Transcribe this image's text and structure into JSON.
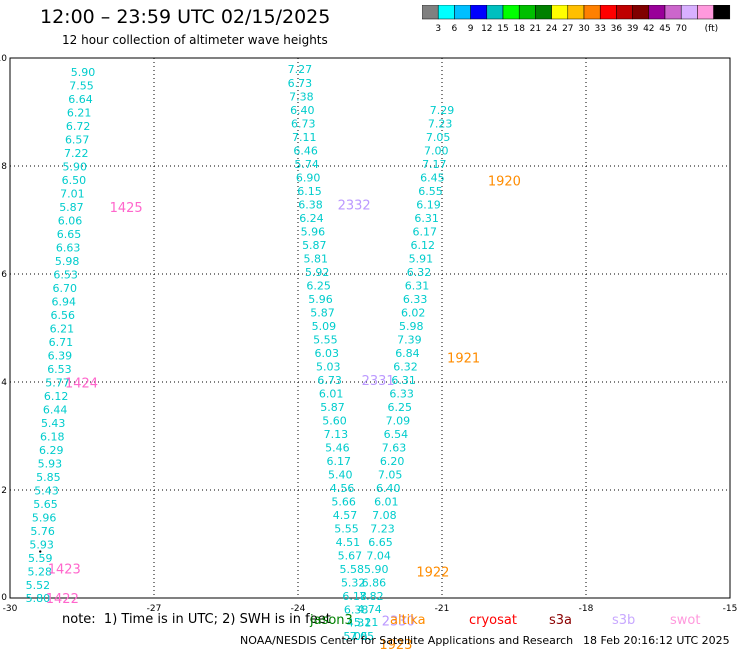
{
  "header": {
    "title": "12:00 – 23:59 UTC 02/15/2025",
    "subtitle": "12 hour collection of altimeter wave heights"
  },
  "colorbar": {
    "colors": [
      "#808080",
      "#00ffff",
      "#00bfff",
      "#0000ff",
      "#00bfbf",
      "#00ff00",
      "#00bf00",
      "#008000",
      "#ffff00",
      "#ffbf00",
      "#ff8000",
      "#ff0000",
      "#bf0000",
      "#800000",
      "#990099",
      "#cc66cc",
      "#d8b0ff",
      "#ff99dd",
      "#000000"
    ],
    "labels": [
      "3",
      "6",
      "9",
      "12",
      "15",
      "18",
      "21",
      "24",
      "27",
      "30",
      "33",
      "36",
      "39",
      "42",
      "45",
      "70",
      "(ft)"
    ]
  },
  "footer": {
    "note": "note:  1) Time is in UTC; 2) SWH is in feet",
    "credit": "NOAA/NESDIS Center for Satellite Applications and Research",
    "timestamp": "18 Feb 20:16:12 UTC 2025",
    "missions": [
      {
        "name": "jason3",
        "color": "#008000"
      },
      {
        "name": "altika",
        "color": "#ff8c00"
      },
      {
        "name": "cryosat",
        "color": "#ff0000"
      },
      {
        "name": "s3a",
        "color": "#8b0000"
      },
      {
        "name": "s3b",
        "color": "#c8a8ff"
      },
      {
        "name": "swot",
        "color": "#ff99dd"
      }
    ]
  },
  "chart_data": {
    "type": "scatter",
    "xlim": [
      -30,
      -15
    ],
    "ylim": [
      0,
      10
    ],
    "xticks": [
      "-30",
      "-27",
      "-24",
      "-21",
      "-18",
      "-15"
    ],
    "yticks": [
      "0",
      "2",
      "4",
      "6",
      "8",
      "10"
    ],
    "grid": true,
    "tracks": [
      {
        "name": "swot-track-1",
        "color": "#00cccc",
        "points": [
          {
            "x": -29.42,
            "y": 0.0,
            "swh": "5.80"
          },
          {
            "x": -29.42,
            "y": 0.24,
            "swh": "5.52"
          },
          {
            "x": -29.38,
            "y": 0.49,
            "swh": "5.28"
          },
          {
            "x": -29.37,
            "y": 0.74,
            "swh": "5.59"
          },
          {
            "x": -29.34,
            "y": 0.99,
            "swh": "5.93"
          },
          {
            "x": -29.32,
            "y": 1.24,
            "swh": "5.76"
          },
          {
            "x": -29.29,
            "y": 1.49,
            "swh": "5.96"
          },
          {
            "x": -29.26,
            "y": 1.74,
            "swh": "5.65"
          },
          {
            "x": -29.24,
            "y": 1.99,
            "swh": "5.43"
          },
          {
            "x": -29.2,
            "y": 2.24,
            "swh": "5.85"
          },
          {
            "x": -29.17,
            "y": 2.49,
            "swh": "5.93"
          },
          {
            "x": -29.14,
            "y": 2.74,
            "swh": "6.29"
          },
          {
            "x": -29.12,
            "y": 2.99,
            "swh": "6.18"
          },
          {
            "x": -29.1,
            "y": 3.24,
            "swh": "5.43"
          },
          {
            "x": -29.06,
            "y": 3.49,
            "swh": "6.44"
          },
          {
            "x": -29.04,
            "y": 3.74,
            "swh": "6.12"
          },
          {
            "x": -29.01,
            "y": 3.99,
            "swh": "5.77"
          },
          {
            "x": -28.97,
            "y": 4.24,
            "swh": "6.53"
          },
          {
            "x": -28.96,
            "y": 4.49,
            "swh": "6.39"
          },
          {
            "x": -28.94,
            "y": 4.74,
            "swh": "6.71"
          },
          {
            "x": -28.92,
            "y": 4.99,
            "swh": "6.21"
          },
          {
            "x": -28.9,
            "y": 5.24,
            "swh": "6.56"
          },
          {
            "x": -28.88,
            "y": 5.49,
            "swh": "6.94"
          },
          {
            "x": -28.86,
            "y": 5.74,
            "swh": "6.70"
          },
          {
            "x": -28.84,
            "y": 5.99,
            "swh": "6.53"
          },
          {
            "x": -28.81,
            "y": 6.24,
            "swh": "5.98"
          },
          {
            "x": -28.79,
            "y": 6.49,
            "swh": "6.63"
          },
          {
            "x": -28.77,
            "y": 6.74,
            "swh": "6.65"
          },
          {
            "x": -28.75,
            "y": 6.99,
            "swh": "6.06"
          },
          {
            "x": -28.72,
            "y": 7.24,
            "swh": "5.87"
          },
          {
            "x": -28.7,
            "y": 7.49,
            "swh": "7.01"
          },
          {
            "x": -28.67,
            "y": 7.74,
            "swh": "6.50"
          },
          {
            "x": -28.65,
            "y": 7.99,
            "swh": "5.90"
          },
          {
            "x": -28.62,
            "y": 8.24,
            "swh": "7.22"
          },
          {
            "x": -28.6,
            "y": 8.49,
            "swh": "6.57"
          },
          {
            "x": -28.58,
            "y": 8.74,
            "swh": "6.72"
          },
          {
            "x": -28.56,
            "y": 8.99,
            "swh": "6.21"
          },
          {
            "x": -28.53,
            "y": 9.24,
            "swh": "6.64"
          },
          {
            "x": -28.51,
            "y": 9.49,
            "swh": "7.55"
          },
          {
            "x": -28.48,
            "y": 9.74,
            "swh": "5.90"
          }
        ]
      },
      {
        "name": "swot-track-2",
        "color": "#00cccc",
        "points": [
          {
            "x": -23.96,
            "y": 9.8,
            "swh": "7.27"
          },
          {
            "x": -23.96,
            "y": 9.54,
            "swh": "6.73"
          },
          {
            "x": -23.93,
            "y": 9.29,
            "swh": "7.38"
          },
          {
            "x": -23.91,
            "y": 9.04,
            "swh": "6.40"
          },
          {
            "x": -23.89,
            "y": 8.79,
            "swh": "6.73"
          },
          {
            "x": -23.87,
            "y": 8.54,
            "swh": "7.11"
          },
          {
            "x": -23.84,
            "y": 8.29,
            "swh": "6.46"
          },
          {
            "x": -23.82,
            "y": 8.04,
            "swh": "5.74"
          },
          {
            "x": -23.79,
            "y": 7.79,
            "swh": "6.90"
          },
          {
            "x": -23.76,
            "y": 7.54,
            "swh": "6.15"
          },
          {
            "x": -23.74,
            "y": 7.29,
            "swh": "6.38"
          },
          {
            "x": -23.72,
            "y": 7.04,
            "swh": "6.24"
          },
          {
            "x": -23.69,
            "y": 6.79,
            "swh": "5.96"
          },
          {
            "x": -23.66,
            "y": 6.54,
            "swh": "5.87"
          },
          {
            "x": -23.63,
            "y": 6.29,
            "swh": "5.81"
          },
          {
            "x": -23.6,
            "y": 6.04,
            "swh": "5.92"
          },
          {
            "x": -23.57,
            "y": 5.79,
            "swh": "6.25"
          },
          {
            "x": -23.53,
            "y": 5.54,
            "swh": "5.96"
          },
          {
            "x": -23.49,
            "y": 5.29,
            "swh": "5.87"
          },
          {
            "x": -23.46,
            "y": 5.04,
            "swh": "5.09"
          },
          {
            "x": -23.43,
            "y": 4.79,
            "swh": "5.55"
          },
          {
            "x": -23.4,
            "y": 4.54,
            "swh": "6.03"
          },
          {
            "x": -23.37,
            "y": 4.29,
            "swh": "5.03"
          },
          {
            "x": -23.34,
            "y": 4.04,
            "swh": "6.73"
          },
          {
            "x": -23.31,
            "y": 3.79,
            "swh": "6.01"
          },
          {
            "x": -23.28,
            "y": 3.54,
            "swh": "5.87"
          },
          {
            "x": -23.24,
            "y": 3.29,
            "swh": "5.60"
          },
          {
            "x": -23.21,
            "y": 3.04,
            "swh": "7.13"
          },
          {
            "x": -23.18,
            "y": 2.79,
            "swh": "5.46"
          },
          {
            "x": -23.15,
            "y": 2.54,
            "swh": "6.17"
          },
          {
            "x": -23.12,
            "y": 2.29,
            "swh": "5.40"
          },
          {
            "x": -23.08,
            "y": 2.04,
            "swh": "4.56"
          },
          {
            "x": -23.05,
            "y": 1.79,
            "swh": "5.66"
          },
          {
            "x": -23.02,
            "y": 1.54,
            "swh": "4.57"
          },
          {
            "x": -22.99,
            "y": 1.29,
            "swh": "5.55"
          },
          {
            "x": -22.96,
            "y": 1.04,
            "swh": "4.51"
          },
          {
            "x": -22.92,
            "y": 0.79,
            "swh": "5.67"
          },
          {
            "x": -22.88,
            "y": 0.54,
            "swh": "5.58"
          },
          {
            "x": -22.85,
            "y": 0.29,
            "swh": "5.32"
          },
          {
            "x": -22.82,
            "y": 0.04,
            "swh": "6.18"
          },
          {
            "x": -22.79,
            "y": -0.21,
            "swh": "6.38"
          },
          {
            "x": -22.73,
            "y": -0.45,
            "swh": "4.31"
          },
          {
            "x": -22.8,
            "y": -0.7,
            "swh": "5.05"
          }
        ]
      },
      {
        "name": "swot-track-3",
        "color": "#00cccc",
        "points": [
          {
            "x": -22.51,
            "y": -0.2,
            "swh": "4.74"
          },
          {
            "x": -22.58,
            "y": -0.44,
            "swh": "5.21"
          },
          {
            "x": -22.67,
            "y": -0.7,
            "swh": "7.05"
          },
          {
            "x": -22.47,
            "y": 0.04,
            "swh": "7.82"
          },
          {
            "x": -22.42,
            "y": 0.29,
            "swh": "6.86"
          },
          {
            "x": -22.37,
            "y": 0.54,
            "swh": "5.90"
          },
          {
            "x": -22.32,
            "y": 0.79,
            "swh": "7.04"
          },
          {
            "x": -22.28,
            "y": 1.04,
            "swh": "6.65"
          },
          {
            "x": -22.24,
            "y": 1.29,
            "swh": "7.23"
          },
          {
            "x": -22.2,
            "y": 1.54,
            "swh": "7.08"
          },
          {
            "x": -22.16,
            "y": 1.79,
            "swh": "6.01"
          },
          {
            "x": -22.12,
            "y": 2.04,
            "swh": "6.40"
          },
          {
            "x": -22.08,
            "y": 2.29,
            "swh": "7.05"
          },
          {
            "x": -22.04,
            "y": 2.54,
            "swh": "6.20"
          },
          {
            "x": -22.0,
            "y": 2.79,
            "swh": "7.63"
          },
          {
            "x": -21.96,
            "y": 3.04,
            "swh": "6.54"
          },
          {
            "x": -21.92,
            "y": 3.29,
            "swh": "7.09"
          },
          {
            "x": -21.88,
            "y": 3.54,
            "swh": "6.25"
          },
          {
            "x": -21.84,
            "y": 3.79,
            "swh": "6.33"
          },
          {
            "x": -21.8,
            "y": 4.04,
            "swh": "6.31"
          },
          {
            "x": -21.76,
            "y": 4.29,
            "swh": "6.32"
          },
          {
            "x": -21.72,
            "y": 4.54,
            "swh": "6.84"
          },
          {
            "x": -21.68,
            "y": 4.79,
            "swh": "7.39"
          },
          {
            "x": -21.64,
            "y": 5.04,
            "swh": "5.98"
          },
          {
            "x": -21.6,
            "y": 5.29,
            "swh": "6.02"
          },
          {
            "x": -21.56,
            "y": 5.54,
            "swh": "6.33"
          },
          {
            "x": -21.52,
            "y": 5.79,
            "swh": "6.31"
          },
          {
            "x": -21.48,
            "y": 6.04,
            "swh": "6.32"
          },
          {
            "x": -21.44,
            "y": 6.29,
            "swh": "5.91"
          },
          {
            "x": -21.4,
            "y": 6.54,
            "swh": "6.12"
          },
          {
            "x": -21.36,
            "y": 6.79,
            "swh": "6.17"
          },
          {
            "x": -21.32,
            "y": 7.04,
            "swh": "6.31"
          },
          {
            "x": -21.28,
            "y": 7.29,
            "swh": "6.19"
          },
          {
            "x": -21.24,
            "y": 7.54,
            "swh": "6.55"
          },
          {
            "x": -21.2,
            "y": 7.79,
            "swh": "6.45"
          },
          {
            "x": -21.16,
            "y": 8.04,
            "swh": "7.17"
          },
          {
            "x": -21.12,
            "y": 8.29,
            "swh": "7.00"
          },
          {
            "x": -21.08,
            "y": 8.54,
            "swh": "7.05"
          },
          {
            "x": -21.04,
            "y": 8.79,
            "swh": "7.23"
          },
          {
            "x": -21.0,
            "y": 9.04,
            "swh": "7.29"
          }
        ]
      }
    ],
    "time_labels": [
      {
        "text": "1422",
        "x": -28.91,
        "y": 0.0,
        "color": "#ff66cc"
      },
      {
        "text": "1423",
        "x": -28.87,
        "y": 0.55,
        "color": "#ff66cc"
      },
      {
        "text": "1424",
        "x": -28.51,
        "y": 3.99,
        "color": "#ff66cc"
      },
      {
        "text": "1425",
        "x": -27.58,
        "y": 7.24,
        "color": "#ff66cc"
      },
      {
        "text": "2332",
        "x": -22.83,
        "y": 7.29,
        "color": "#bb99ff"
      },
      {
        "text": "2331",
        "x": -22.33,
        "y": 4.04,
        "color": "#bb99ff"
      },
      {
        "text": "2330",
        "x": -21.91,
        "y": -0.42,
        "color": "#bb99ff"
      },
      {
        "text": "1923",
        "x": -21.96,
        "y": -0.85,
        "color": "#ff8c00"
      },
      {
        "text": "1922",
        "x": -21.19,
        "y": 0.49,
        "color": "#ff8c00"
      },
      {
        "text": "1921",
        "x": -20.55,
        "y": 4.45,
        "color": "#ff8c00"
      },
      {
        "text": "1920",
        "x": -19.7,
        "y": 7.73,
        "color": "#ff8c00"
      }
    ],
    "extra_marks": [
      {
        "x": -29.37,
        "y": 0.86
      }
    ]
  }
}
